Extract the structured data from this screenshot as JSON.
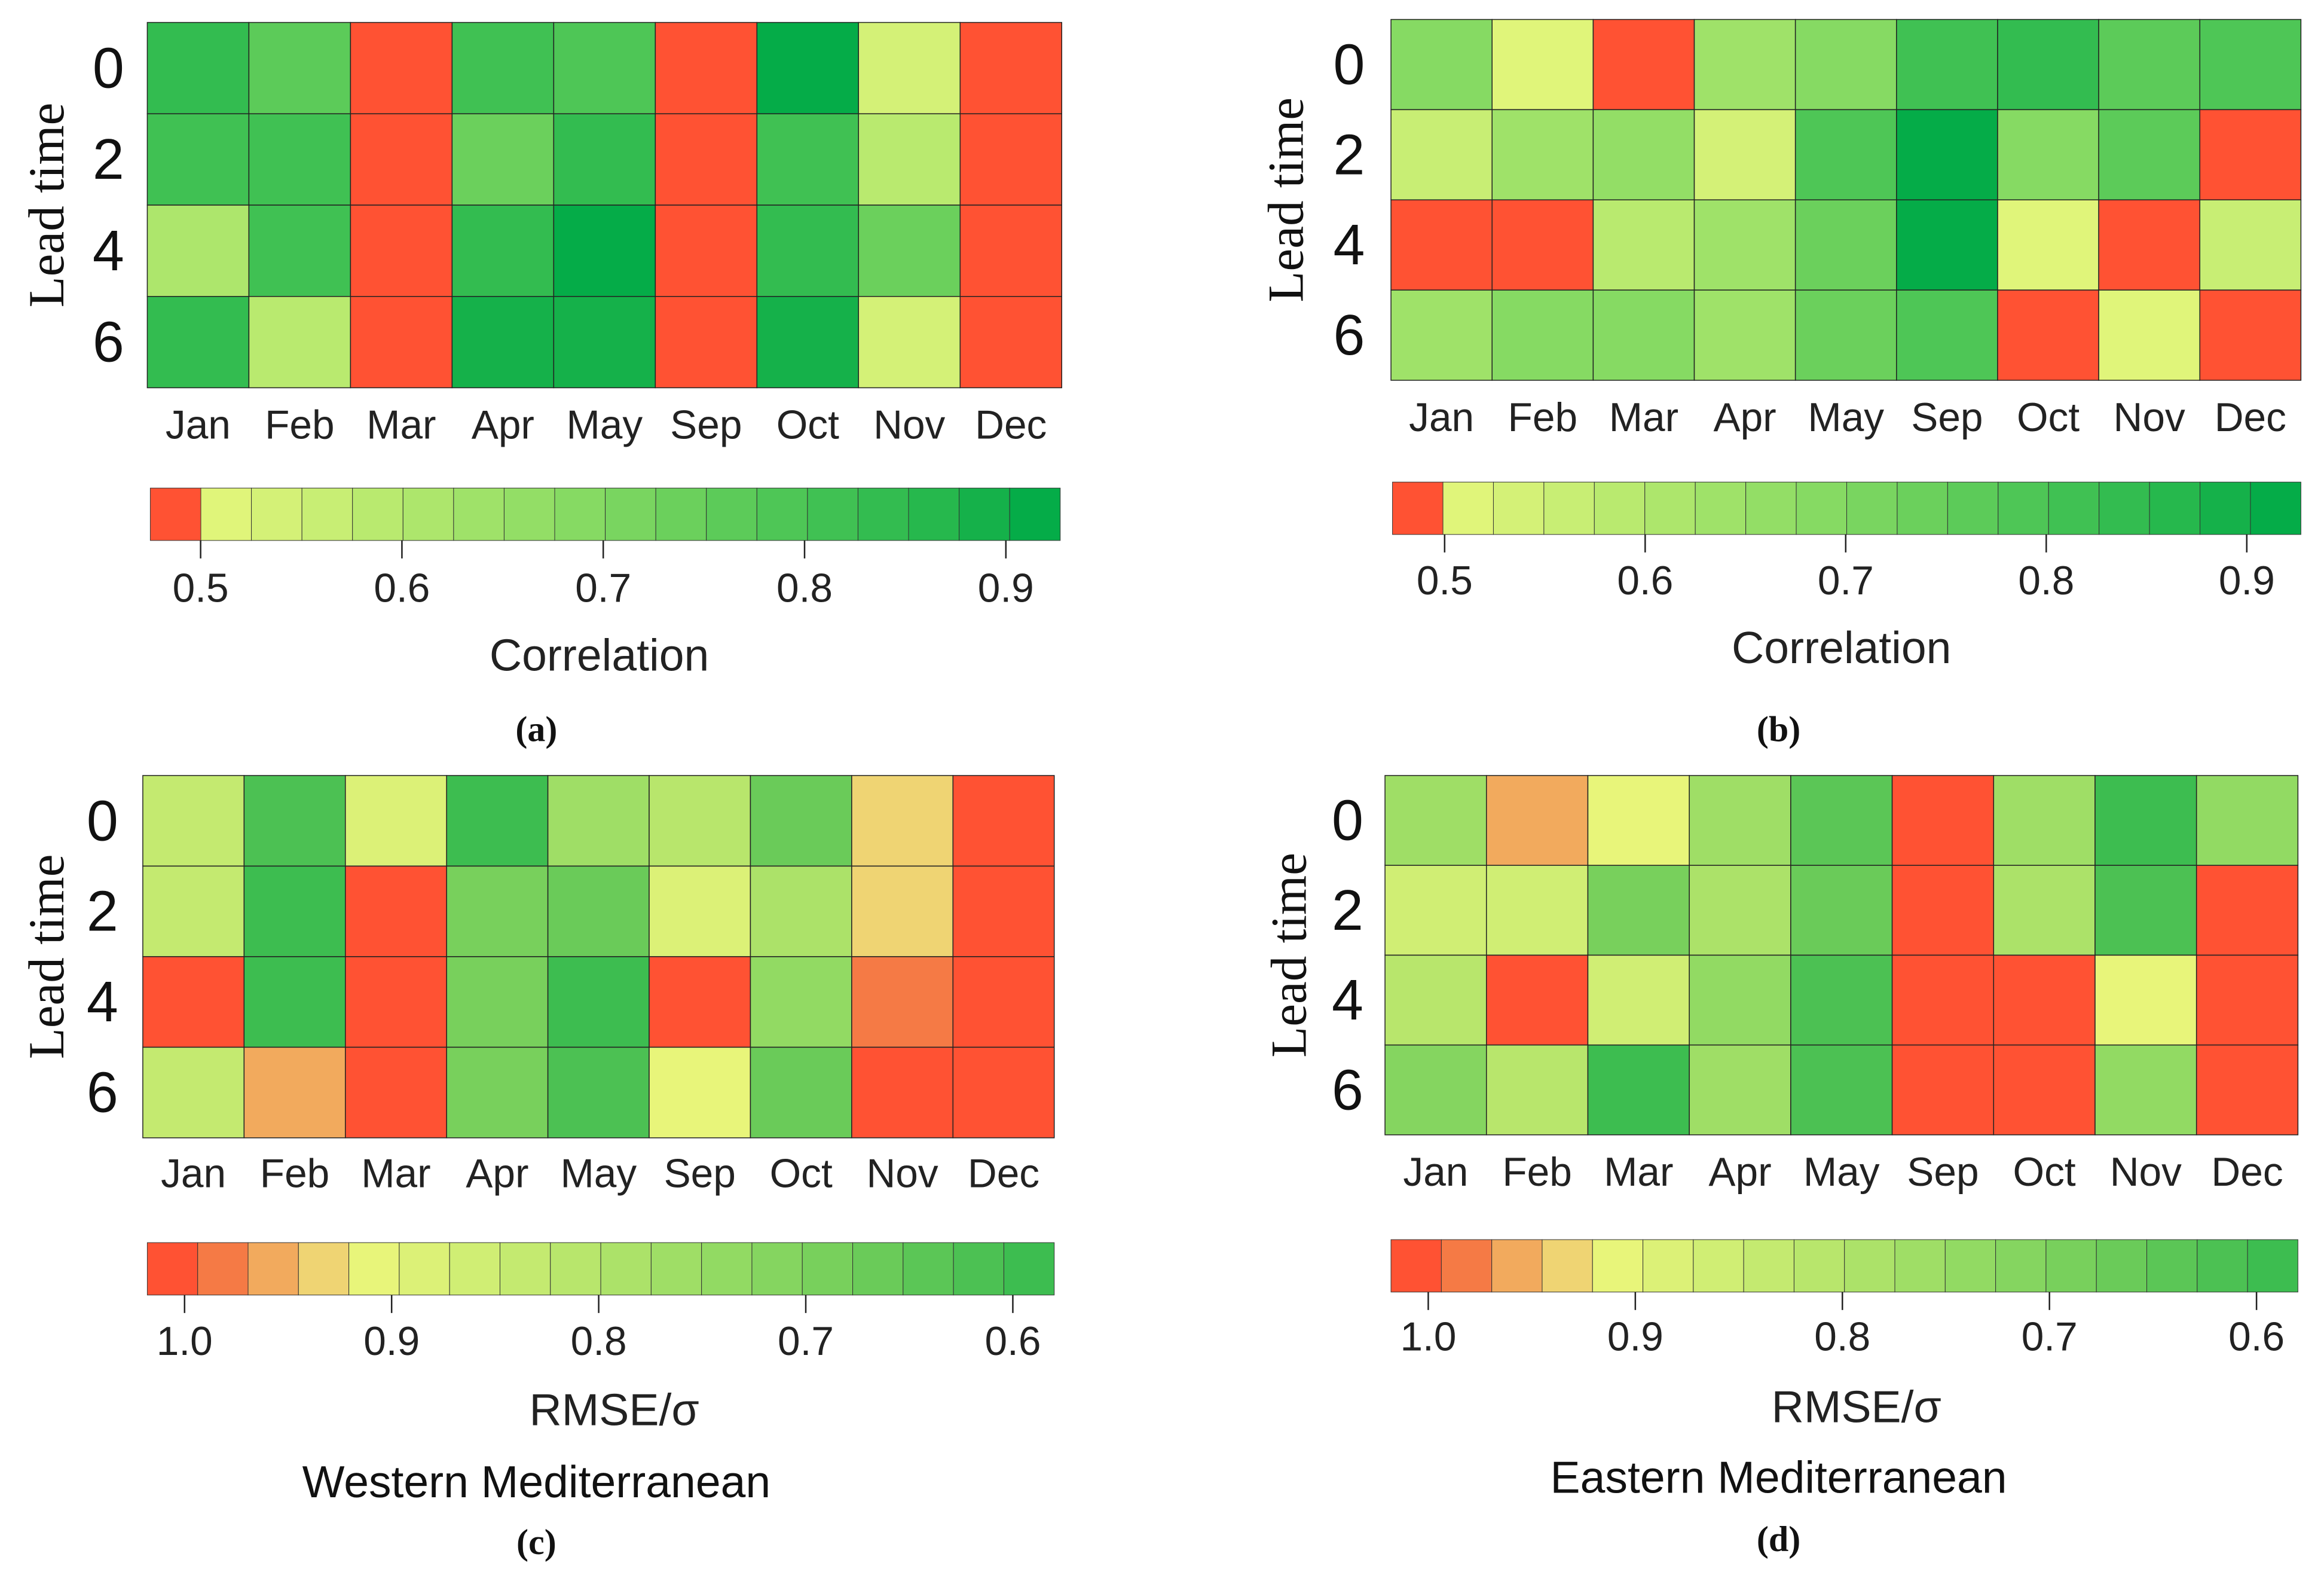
{
  "chart_data": [
    {
      "id": "a",
      "type": "heatmap",
      "panel_label": "(a)",
      "caption": "",
      "ylabel": "Lead time",
      "rows": [
        "0",
        "2",
        "4",
        "6"
      ],
      "categories": [
        "Jan",
        "Feb",
        "Mar",
        "Apr",
        "May",
        "Sep",
        "Oct",
        "Nov",
        "Dec"
      ],
      "values": [
        [
          0.83,
          0.77,
          0.45,
          0.82,
          0.8,
          0.45,
          0.91,
          0.55,
          0.45
        ],
        [
          0.82,
          0.81,
          0.45,
          0.74,
          0.85,
          0.45,
          0.82,
          0.6,
          0.45
        ],
        [
          0.62,
          0.82,
          0.45,
          0.85,
          0.91,
          0.45,
          0.85,
          0.74,
          0.45
        ],
        [
          0.83,
          0.58,
          0.45,
          0.88,
          0.88,
          0.45,
          0.88,
          0.54,
          0.45
        ]
      ],
      "colorbar": {
        "label": "Correlation",
        "range": [
          0.475,
          0.927
        ],
        "ticks": [
          "0.5",
          "0.6",
          "0.7",
          "0.8",
          "0.9"
        ],
        "colors": [
          "#ff5233",
          "#e0f57a",
          "#d4f177",
          "#c8ee74",
          "#b9ea6f",
          "#ade66c",
          "#9fe269",
          "#93de66",
          "#86da63",
          "#79d560",
          "#6bd05c",
          "#5ccb59",
          "#4ec656",
          "#40c153",
          "#33bc50",
          "#26b84d",
          "#15b14a",
          "#05ac48"
        ]
      }
    },
    {
      "id": "b",
      "type": "heatmap",
      "panel_label": "(b)",
      "caption": "",
      "ylabel": "Lead time",
      "rows": [
        "0",
        "2",
        "4",
        "6"
      ],
      "categories": [
        "Jan",
        "Feb",
        "Mar",
        "Apr",
        "May",
        "Sep",
        "Oct",
        "Nov",
        "Dec"
      ],
      "values": [
        [
          0.68,
          0.52,
          0.45,
          0.65,
          0.7,
          0.82,
          0.84,
          0.77,
          0.8
        ],
        [
          0.56,
          0.65,
          0.67,
          0.53,
          0.8,
          0.91,
          0.68,
          0.76,
          0.45
        ],
        [
          0.45,
          0.45,
          0.58,
          0.65,
          0.75,
          0.91,
          0.51,
          0.45,
          0.57
        ],
        [
          0.63,
          0.7,
          0.7,
          0.65,
          0.74,
          0.8,
          0.45,
          0.51,
          0.45
        ]
      ],
      "colorbar": {
        "label": "Correlation",
        "range": [
          0.474,
          0.927
        ],
        "ticks": [
          "0.5",
          "0.6",
          "0.7",
          "0.8",
          "0.9"
        ],
        "colors": [
          "#ff5233",
          "#e0f57a",
          "#d4f177",
          "#c8ee74",
          "#b9ea6f",
          "#ade66c",
          "#9fe269",
          "#93de66",
          "#86da63",
          "#79d560",
          "#6bd05c",
          "#5ccb59",
          "#4ec656",
          "#40c153",
          "#33bc50",
          "#26b84d",
          "#15b14a",
          "#05ac48"
        ]
      }
    },
    {
      "id": "c",
      "type": "heatmap",
      "panel_label": "(c)",
      "caption": "Western Mediterranean",
      "ylabel": "Lead time",
      "rows": [
        "0",
        "2",
        "4",
        "6"
      ],
      "categories": [
        "Jan",
        "Feb",
        "Mar",
        "Apr",
        "May",
        "Sep",
        "Oct",
        "Nov",
        "Dec"
      ],
      "values": [
        [
          0.83,
          0.62,
          0.89,
          0.58,
          0.76,
          0.82,
          0.66,
          0.93,
          1.0
        ],
        [
          0.84,
          0.6,
          1.0,
          0.7,
          0.67,
          0.89,
          0.79,
          0.93,
          1.0
        ],
        [
          1.0,
          0.58,
          1.0,
          0.7,
          0.57,
          1.0,
          0.74,
          0.99,
          1.0
        ],
        [
          0.84,
          0.95,
          1.0,
          0.7,
          0.62,
          0.9,
          0.66,
          1.0,
          1.0
        ]
      ],
      "colorbar": {
        "label": "RMSE/σ",
        "range": [
          1.018,
          0.58
        ],
        "ticks": [
          "1.0",
          "0.9",
          "0.8",
          "0.7",
          "0.6"
        ],
        "colors": [
          "#ff5233",
          "#f57a45",
          "#f2aa5d",
          "#efd473",
          "#e8f57a",
          "#dcf177",
          "#d0ee74",
          "#c4ea70",
          "#b8e66c",
          "#ace269",
          "#9fde66",
          "#92da63",
          "#85d560",
          "#78d05c",
          "#6acb59",
          "#5bc656",
          "#4cc153",
          "#3dbd50"
        ]
      }
    },
    {
      "id": "d",
      "type": "heatmap",
      "panel_label": "(d)",
      "caption": "Eastern Mediterranean",
      "ylabel": "Lead time",
      "rows": [
        "0",
        "2",
        "4",
        "6"
      ],
      "categories": [
        "Jan",
        "Feb",
        "Mar",
        "Apr",
        "May",
        "Sep",
        "Oct",
        "Nov",
        "Dec"
      ],
      "values": [
        [
          0.76,
          0.95,
          0.92,
          0.76,
          0.64,
          1.0,
          0.76,
          0.59,
          0.74
        ],
        [
          0.86,
          0.87,
          0.68,
          0.78,
          0.67,
          1.0,
          0.79,
          0.61,
          1.0
        ],
        [
          0.82,
          1.0,
          0.85,
          0.74,
          0.61,
          1.0,
          1.0,
          0.91,
          1.0
        ],
        [
          0.72,
          0.8,
          0.59,
          0.76,
          0.62,
          1.0,
          1.0,
          0.74,
          1.0
        ]
      ],
      "colorbar": {
        "label": "RMSE/σ",
        "range": [
          1.018,
          0.58
        ],
        "ticks": [
          "1.0",
          "0.9",
          "0.8",
          "0.7",
          "0.6"
        ],
        "colors": [
          "#ff5233",
          "#f57a45",
          "#f2aa5d",
          "#efd473",
          "#e8f57a",
          "#dcf177",
          "#d0ee74",
          "#c4ea70",
          "#b8e66c",
          "#ace269",
          "#9fde66",
          "#92da63",
          "#85d560",
          "#78d05c",
          "#6acb59",
          "#5bc656",
          "#4cc153",
          "#3dbd50"
        ]
      }
    }
  ]
}
